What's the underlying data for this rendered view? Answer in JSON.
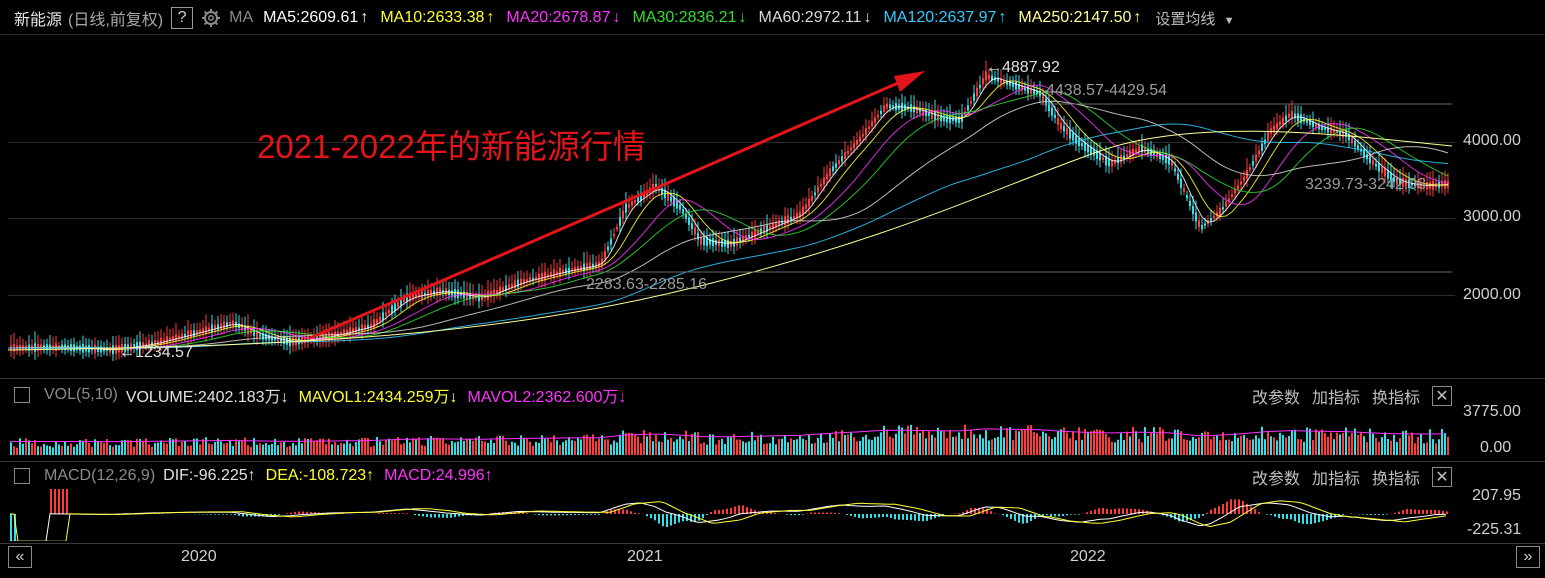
{
  "header": {
    "name": "新能源",
    "period": "(日线,前复权)",
    "help": "?",
    "ma_label": "MA",
    "ma": [
      {
        "text": "MA5:2609.61",
        "arrow": "↑",
        "color": "#ffffff",
        "arrow_color": "#ffffff"
      },
      {
        "text": "MA10:2633.38",
        "arrow": "↑",
        "color": "#ffff33",
        "arrow_color": "#ffff33"
      },
      {
        "text": "MA20:2678.87",
        "arrow": "↓",
        "color": "#ff33ff",
        "arrow_color": "#ff33ff"
      },
      {
        "text": "MA30:2836.21",
        "arrow": "↓",
        "color": "#33dd33",
        "arrow_color": "#33dd33"
      },
      {
        "text": "MA60:2972.11",
        "arrow": "↓",
        "color": "#d9d9d9",
        "arrow_color": "#d9d9d9"
      },
      {
        "text": "MA120:2637.97",
        "arrow": "↑",
        "color": "#33ccff",
        "arrow_color": "#33ccff"
      },
      {
        "text": "MA250:2147.50",
        "arrow": "↑",
        "color": "#ffff99",
        "arrow_color": "#ffff99"
      }
    ],
    "settings": "设置均线"
  },
  "annotation": "2021-2022年的新能源行情",
  "price_axis": [
    "4000.00",
    "3000.00",
    "2000.00"
  ],
  "price_marks": {
    "high": "4887.92",
    "low": "1234.57",
    "range_a": "4438.57-4429.54",
    "range_b": "2283.63-2285.16",
    "range_c": "3239.73-3242.08"
  },
  "vol": {
    "label": "VOL(5,10)",
    "volume": {
      "text": "VOLUME:2402.183万",
      "arrow": "↓"
    },
    "mavol1": {
      "text": "MAVOL1:2434.259万",
      "arrow": "↓"
    },
    "mavol2": {
      "text": "MAVOL2:2362.600万",
      "arrow": "↓"
    },
    "axis": [
      "3775.00",
      "0.00"
    ]
  },
  "macd": {
    "label": "MACD(12,26,9)",
    "dif": {
      "text": "DIF:-96.225",
      "arrow": "↑"
    },
    "dea": {
      "text": "DEA:-108.723",
      "arrow": "↑"
    },
    "macd": {
      "text": "MACD:24.996",
      "arrow": "↑"
    },
    "axis": [
      "207.95",
      "-225.31"
    ]
  },
  "panel_buttons": {
    "change": "改参数",
    "add": "加指标",
    "swap": "换指标",
    "close": "✕"
  },
  "time_axis": [
    "2020",
    "2021",
    "2022"
  ],
  "nav": {
    "prev": "«",
    "next": "»"
  },
  "colors": {
    "up": "#ff3b3b",
    "down": "#34e0e8",
    "arrow": "#e4151a",
    "annotation": "#e4151a"
  }
}
